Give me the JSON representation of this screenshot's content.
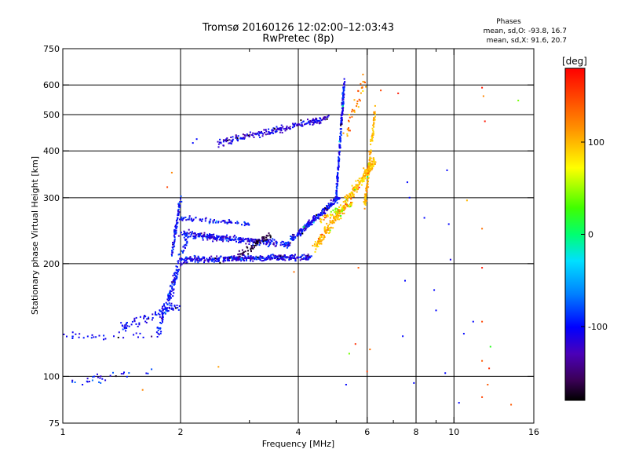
{
  "chart_data": {
    "type": "scatter",
    "title": "Tromsø 20160126 12:02:00–12:03:43",
    "subtitle": "RwPretec (8p)",
    "xlabel": "Frequency [MHz]",
    "ylabel": "Stationary phase Virtual Height [km]",
    "x_scale": "log",
    "y_scale": "log",
    "xlim": [
      1,
      16
    ],
    "ylim": [
      75,
      750
    ],
    "x_ticks": [
      1,
      2,
      4,
      6,
      8,
      10,
      16
    ],
    "x_minor_ticks": [
      3,
      5,
      7,
      9
    ],
    "y_ticks": [
      75,
      100,
      200,
      300,
      400,
      500,
      600,
      750
    ],
    "x_gridlines": [
      2,
      4,
      6,
      8,
      10
    ],
    "y_gridlines": [
      100,
      200,
      300,
      400,
      500,
      600
    ],
    "stats": {
      "heading": "Phases",
      "line_o": "mean, sd,O: -93.8, 16.7",
      "line_x": "mean, sd,X: 91.6, 20.7"
    },
    "colorbar": {
      "label": "[deg]",
      "range": [
        -180,
        180
      ],
      "ticks": [
        -100,
        0,
        100
      ],
      "colormap": "rainbow"
    },
    "traces": [
      {
        "f0": 1.0,
        "f1": 1.75,
        "h0": 128,
        "h1": 128,
        "n": 30,
        "jx": 0.02,
        "jy": 0.03,
        "ph": [
          -115,
          -90
        ]
      },
      {
        "f0": 1.05,
        "f1": 1.7,
        "h0": 96,
        "h1": 104,
        "n": 30,
        "jx": 0.03,
        "jy": 0.04,
        "ph": [
          -120,
          -70
        ]
      },
      {
        "f0": 1.4,
        "f1": 2.0,
        "h0": 135,
        "h1": 155,
        "n": 80,
        "jx": 0.03,
        "jy": 0.05,
        "ph": [
          -120,
          -80
        ]
      },
      {
        "f0": 1.75,
        "f1": 2.1,
        "h0": 130,
        "h1": 240,
        "n": 160,
        "jx": 0.02,
        "jy": 0.05,
        "ph": [
          -120,
          -80
        ]
      },
      {
        "f0": 1.9,
        "f1": 2.0,
        "h0": 210,
        "h1": 300,
        "n": 80,
        "jx": 0.01,
        "jy": 0.04,
        "ph": [
          -120,
          -80
        ]
      },
      {
        "f0": 2.05,
        "f1": 4.3,
        "h0": 205,
        "h1": 208,
        "n": 420,
        "jx": 0.02,
        "jy": 0.025,
        "ph": [
          -135,
          -80
        ]
      },
      {
        "f0": 2.0,
        "f1": 3.8,
        "h0": 240,
        "h1": 225,
        "n": 320,
        "jx": 0.02,
        "jy": 0.03,
        "ph": [
          -135,
          -80
        ]
      },
      {
        "f0": 2.0,
        "f1": 3.0,
        "h0": 265,
        "h1": 255,
        "n": 80,
        "jx": 0.02,
        "jy": 0.02,
        "ph": [
          -125,
          -80
        ]
      },
      {
        "f0": 3.8,
        "f1": 5.1,
        "h0": 230,
        "h1": 300,
        "n": 220,
        "jx": 0.02,
        "jy": 0.03,
        "ph": [
          -130,
          -80
        ]
      },
      {
        "f0": 5.0,
        "f1": 5.25,
        "h0": 300,
        "h1": 620,
        "n": 200,
        "jx": 0.006,
        "jy": 0.04,
        "ph": [
          -120,
          -80
        ]
      },
      {
        "f0": 2.5,
        "f1": 4.8,
        "h0": 420,
        "h1": 490,
        "n": 220,
        "jx": 0.02,
        "jy": 0.03,
        "ph": [
          -140,
          -90
        ]
      },
      {
        "f0": 4.4,
        "f1": 6.3,
        "h0": 220,
        "h1": 380,
        "n": 320,
        "jx": 0.02,
        "jy": 0.05,
        "ph": [
          80,
          115
        ]
      },
      {
        "f0": 5.9,
        "f1": 6.3,
        "h0": 280,
        "h1": 520,
        "n": 130,
        "jx": 0.01,
        "jy": 0.05,
        "ph": [
          85,
          120
        ]
      },
      {
        "f0": 4.5,
        "f1": 5.5,
        "h0": 260,
        "h1": 290,
        "n": 60,
        "jx": 0.02,
        "jy": 0.03,
        "ph": [
          20,
          130
        ]
      },
      {
        "f0": 2.8,
        "f1": 3.4,
        "h0": 210,
        "h1": 240,
        "n": 60,
        "jx": 0.02,
        "jy": 0.03,
        "ph": [
          -180,
          -150
        ]
      },
      {
        "f0": 5.3,
        "f1": 5.9,
        "h0": 440,
        "h1": 620,
        "n": 40,
        "jx": 0.03,
        "jy": 0.06,
        "ph": [
          80,
          150
        ]
      }
    ],
    "scattered": [
      [
        6.5,
        580,
        150
      ],
      [
        7.2,
        570,
        170
      ],
      [
        11.8,
        590,
        170
      ],
      [
        11.9,
        560,
        120
      ],
      [
        14.6,
        545,
        40
      ],
      [
        12.0,
        480,
        170
      ],
      [
        9.6,
        355,
        -100
      ],
      [
        7.6,
        330,
        -100
      ],
      [
        7.7,
        300,
        -100
      ],
      [
        8.4,
        265,
        -100
      ],
      [
        9.7,
        255,
        -100
      ],
      [
        10.8,
        295,
        100
      ],
      [
        11.8,
        248,
        130
      ],
      [
        9.8,
        205,
        -110
      ],
      [
        11.8,
        195,
        170
      ],
      [
        5.7,
        195,
        140
      ],
      [
        7.5,
        180,
        -100
      ],
      [
        8.9,
        170,
        -100
      ],
      [
        9.0,
        150,
        -100
      ],
      [
        11.2,
        140,
        -100
      ],
      [
        11.8,
        140,
        150
      ],
      [
        7.4,
        128,
        -100
      ],
      [
        10.6,
        130,
        -100
      ],
      [
        12.4,
        120,
        20
      ],
      [
        11.8,
        110,
        140
      ],
      [
        12.3,
        105,
        160
      ],
      [
        9.5,
        102,
        -100
      ],
      [
        7.9,
        96,
        -100
      ],
      [
        6.0,
        103,
        150
      ],
      [
        5.3,
        95,
        -100
      ],
      [
        12.2,
        95,
        140
      ],
      [
        11.8,
        88,
        150
      ],
      [
        10.3,
        85,
        -100
      ],
      [
        14.0,
        84,
        140
      ],
      [
        5.6,
        122,
        160
      ],
      [
        5.4,
        115,
        40
      ],
      [
        6.1,
        118,
        130
      ],
      [
        3.9,
        190,
        130
      ],
      [
        2.5,
        106,
        110
      ],
      [
        1.6,
        92,
        120
      ],
      [
        1.9,
        350,
        120
      ],
      [
        2.2,
        430,
        -100
      ],
      [
        2.15,
        420,
        -100
      ],
      [
        1.85,
        320,
        150
      ]
    ]
  }
}
